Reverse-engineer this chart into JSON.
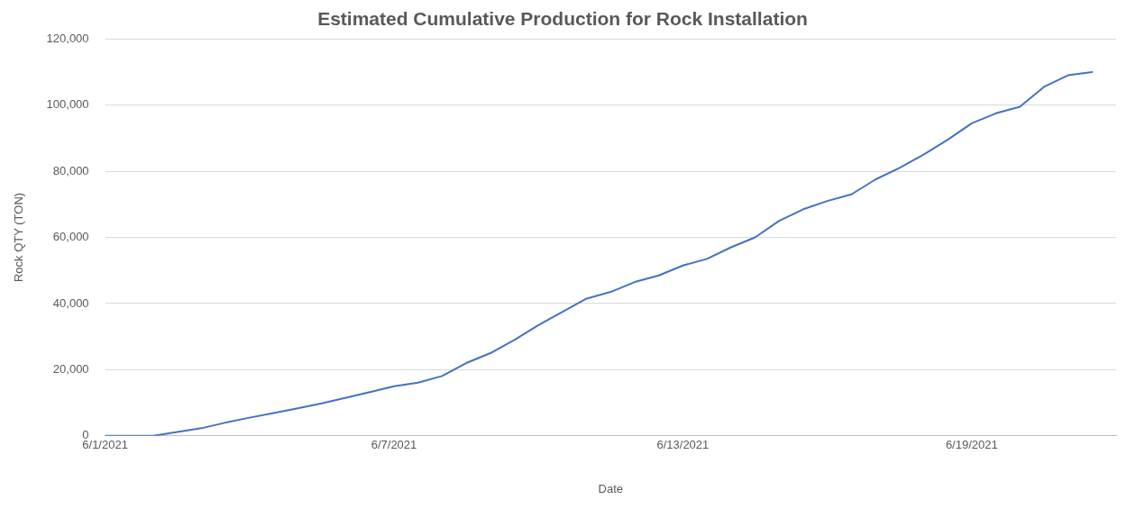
{
  "chart_data": {
    "type": "line",
    "title": "Estimated Cumulative Production for Rock Installation",
    "xlabel": "Date",
    "ylabel": "Rock QTY (TON)",
    "x": [
      "2021-06-01T00:00",
      "2021-06-01T12:00",
      "2021-06-02T00:00",
      "2021-06-02T12:00",
      "2021-06-03T00:00",
      "2021-06-03T12:00",
      "2021-06-04T00:00",
      "2021-06-04T12:00",
      "2021-06-05T00:00",
      "2021-06-05T12:00",
      "2021-06-06T00:00",
      "2021-06-06T12:00",
      "2021-06-07T00:00",
      "2021-06-07T12:00",
      "2021-06-08T00:00",
      "2021-06-08T12:00",
      "2021-06-09T00:00",
      "2021-06-09T12:00",
      "2021-06-10T00:00",
      "2021-06-10T12:00",
      "2021-06-11T00:00",
      "2021-06-11T12:00",
      "2021-06-12T00:00",
      "2021-06-12T12:00",
      "2021-06-13T00:00",
      "2021-06-13T12:00",
      "2021-06-14T00:00",
      "2021-06-14T12:00",
      "2021-06-15T00:00",
      "2021-06-15T12:00",
      "2021-06-16T00:00",
      "2021-06-16T12:00",
      "2021-06-17T00:00",
      "2021-06-17T12:00",
      "2021-06-18T00:00",
      "2021-06-18T12:00",
      "2021-06-19T00:00",
      "2021-06-19T12:00",
      "2021-06-20T00:00",
      "2021-06-20T12:00",
      "2021-06-21T00:00",
      "2021-06-21T12:00"
    ],
    "series": [
      {
        "color": "#4472c4",
        "values": [
          0,
          0,
          0,
          1200,
          2300,
          4000,
          5500,
          6900,
          8300,
          9800,
          11500,
          13200,
          15000,
          16100,
          18100,
          22000,
          25000,
          29000,
          33500,
          37500,
          41500,
          43500,
          46500,
          48500,
          51500,
          53500,
          57000,
          60000,
          65000,
          68500,
          71000,
          73000,
          77500,
          81000,
          85000,
          89500,
          94500,
          97500,
          99500,
          105500,
          109000,
          110000
        ]
      }
    ],
    "xlim": [
      "2021-06-01T00:00",
      "2021-06-22T00:00"
    ],
    "xticks": [
      {
        "value": "2021-06-01T00:00",
        "label": "6/1/2021"
      },
      {
        "value": "2021-06-07T00:00",
        "label": "6/7/2021"
      },
      {
        "value": "2021-06-13T00:00",
        "label": "6/13/2021"
      },
      {
        "value": "2021-06-19T00:00",
        "label": "6/19/2021"
      }
    ],
    "ylim": [
      0,
      120000
    ],
    "yticks": [
      0,
      {
        "value": 20000,
        "label": "20,000"
      },
      {
        "value": 40000,
        "label": "40,000"
      },
      {
        "value": 60000,
        "label": "60,000"
      },
      {
        "value": 80000,
        "label": "80,000"
      },
      {
        "value": 100000,
        "label": "100,000"
      },
      {
        "value": 120000,
        "label": "120,000"
      }
    ],
    "grid": "y",
    "legend": false,
    "marker": "none",
    "line_style": "solid"
  }
}
